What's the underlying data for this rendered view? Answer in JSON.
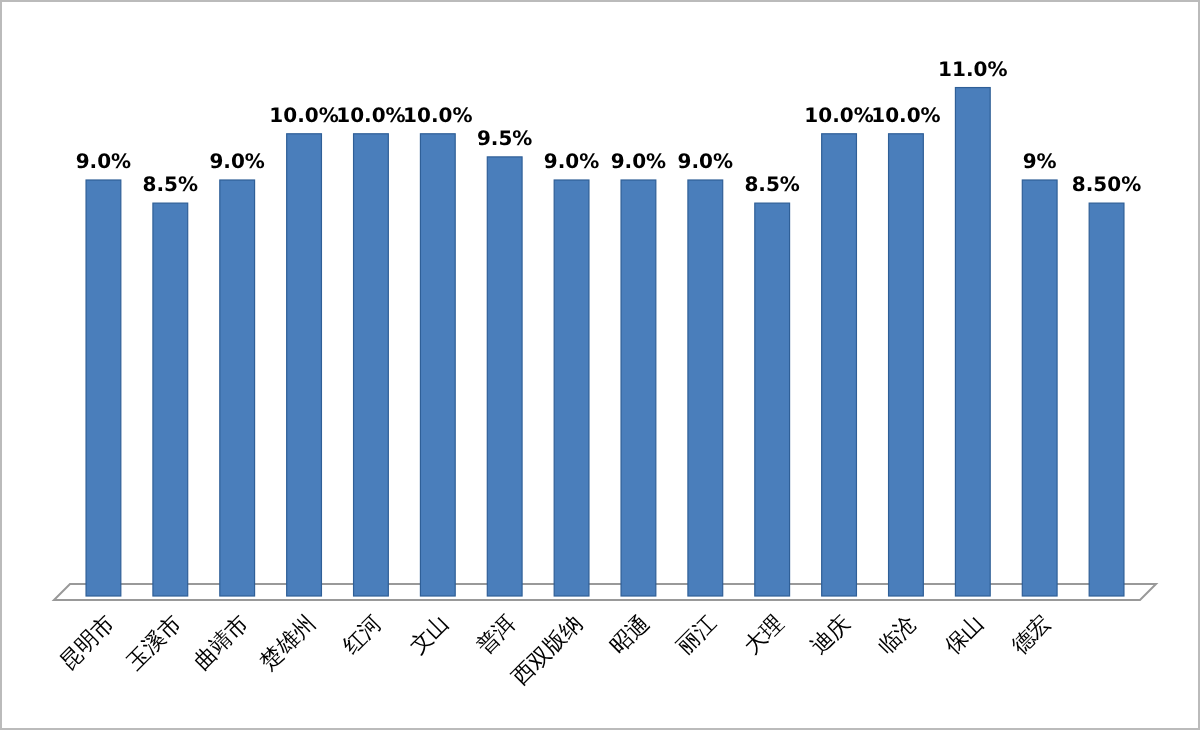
{
  "chart_data": {
    "type": "bar",
    "categories": [
      "昆明市",
      "玉溪市",
      "曲靖市",
      "楚雄州",
      "红河",
      "文山",
      "普洱",
      "西双版纳",
      "昭通",
      "丽江",
      "大理",
      "迪庆",
      "临沧",
      "保山",
      "德宏",
      null
    ],
    "values": [
      9.0,
      8.5,
      9.0,
      10.0,
      10.0,
      10.0,
      9.5,
      9.0,
      9.0,
      9.0,
      8.5,
      10.0,
      10.0,
      11.0,
      9,
      8.5
    ],
    "value_labels": [
      "9.0%",
      "8.5%",
      "9.0%",
      "10.0%",
      "10.0%",
      "10.0%",
      "9.5%",
      "9.0%",
      "9.0%",
      "9.0%",
      "8.5%",
      "10.0%",
      "10.0%",
      "11.0%",
      "9%",
      "8.50%"
    ],
    "color": "#4a7ebb"
  }
}
